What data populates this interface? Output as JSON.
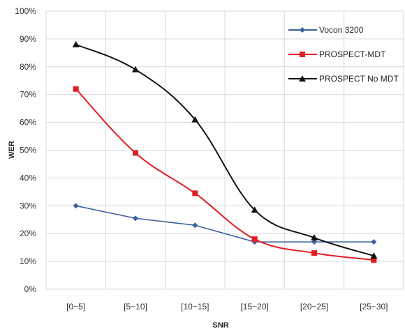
{
  "chart_data": {
    "type": "line",
    "categories": [
      "[0~5]",
      "[5~10]",
      "[10~15]",
      "[15~20]",
      "[20~25]",
      "[25~30]"
    ],
    "xlabel": "SNR",
    "ylabel": "WER",
    "ylim": [
      0,
      100
    ],
    "yticks": [
      "0%",
      "10%",
      "20%",
      "30%",
      "40%",
      "50%",
      "60%",
      "70%",
      "80%",
      "90%",
      "100%"
    ],
    "grid": true,
    "legend_position": "top-right",
    "series": [
      {
        "name": "Vocon 3200",
        "color": "#3a5f9e",
        "marker": "diamond",
        "smooth": false,
        "values": [
          30,
          25.5,
          23,
          17,
          17,
          17
        ]
      },
      {
        "name": "PROSPECT-MDT",
        "color": "#e01e24",
        "marker": "square",
        "smooth": true,
        "values": [
          72,
          49,
          34.5,
          18,
          13,
          10.5
        ]
      },
      {
        "name": "PROSPECT No MDT",
        "color": "#111111",
        "marker": "triangle",
        "smooth": true,
        "values": [
          88,
          79,
          61,
          28.5,
          18.5,
          12
        ]
      }
    ]
  }
}
